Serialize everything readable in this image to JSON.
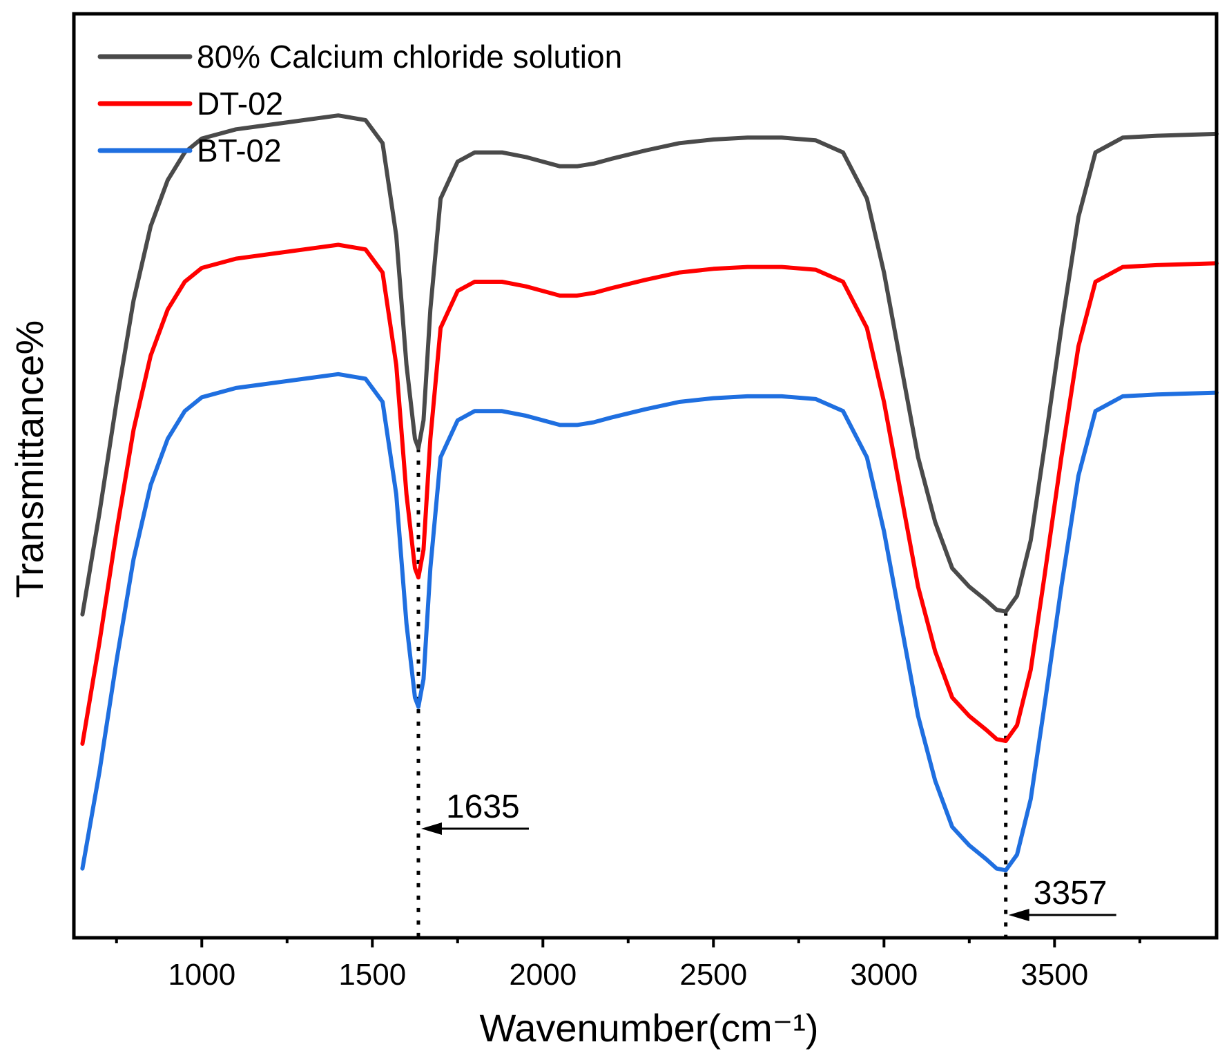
{
  "chart_data": {
    "type": "line",
    "title": "",
    "xlabel": "Wavenumber(cm⁻¹)",
    "ylabel": "Transmittance%",
    "xlim": [
      625,
      3975
    ],
    "ylim": [
      0,
      100
    ],
    "x_ticks": [
      1000,
      1500,
      2000,
      2500,
      3000,
      3500
    ],
    "x_tick_labels": [
      "1000",
      "1500",
      "2000",
      "2500",
      "3000",
      "3500"
    ],
    "y_ticks_shown": false,
    "grid": false,
    "legend_position": "top-left",
    "series": [
      {
        "name": "80% Calcium chloride solution",
        "color": "#4a4a4a",
        "points": [
          [
            650,
            35
          ],
          [
            700,
            46
          ],
          [
            750,
            58
          ],
          [
            800,
            69
          ],
          [
            850,
            77
          ],
          [
            900,
            82
          ],
          [
            950,
            85
          ],
          [
            1000,
            86.5
          ],
          [
            1100,
            87.5
          ],
          [
            1200,
            88
          ],
          [
            1300,
            88.5
          ],
          [
            1400,
            89
          ],
          [
            1480,
            88.5
          ],
          [
            1530,
            86
          ],
          [
            1570,
            76
          ],
          [
            1600,
            62
          ],
          [
            1625,
            54
          ],
          [
            1635,
            53
          ],
          [
            1650,
            56
          ],
          [
            1670,
            68
          ],
          [
            1700,
            80
          ],
          [
            1750,
            84
          ],
          [
            1800,
            85
          ],
          [
            1880,
            85
          ],
          [
            1950,
            84.5
          ],
          [
            2000,
            84
          ],
          [
            2050,
            83.5
          ],
          [
            2100,
            83.5
          ],
          [
            2150,
            83.8
          ],
          [
            2200,
            84.3
          ],
          [
            2300,
            85.2
          ],
          [
            2400,
            86
          ],
          [
            2500,
            86.4
          ],
          [
            2600,
            86.6
          ],
          [
            2700,
            86.6
          ],
          [
            2800,
            86.3
          ],
          [
            2880,
            85
          ],
          [
            2950,
            80
          ],
          [
            3000,
            72
          ],
          [
            3050,
            62
          ],
          [
            3100,
            52
          ],
          [
            3150,
            45
          ],
          [
            3200,
            40
          ],
          [
            3250,
            38
          ],
          [
            3300,
            36.5
          ],
          [
            3330,
            35.5
          ],
          [
            3357,
            35.3
          ],
          [
            3390,
            37
          ],
          [
            3430,
            43
          ],
          [
            3470,
            53
          ],
          [
            3520,
            66
          ],
          [
            3570,
            78
          ],
          [
            3620,
            85
          ],
          [
            3700,
            86.6
          ],
          [
            3800,
            86.8
          ],
          [
            3975,
            87
          ]
        ]
      },
      {
        "name": "DT-02",
        "color": "#ff0000",
        "points": [
          [
            650,
            21
          ],
          [
            700,
            32
          ],
          [
            750,
            44
          ],
          [
            800,
            55
          ],
          [
            850,
            63
          ],
          [
            900,
            68
          ],
          [
            950,
            71
          ],
          [
            1000,
            72.5
          ],
          [
            1100,
            73.5
          ],
          [
            1200,
            74
          ],
          [
            1300,
            74.5
          ],
          [
            1400,
            75
          ],
          [
            1480,
            74.5
          ],
          [
            1530,
            72
          ],
          [
            1570,
            62
          ],
          [
            1600,
            48
          ],
          [
            1625,
            40
          ],
          [
            1635,
            39
          ],
          [
            1650,
            42
          ],
          [
            1670,
            54
          ],
          [
            1700,
            66
          ],
          [
            1750,
            70
          ],
          [
            1800,
            71
          ],
          [
            1880,
            71
          ],
          [
            1950,
            70.5
          ],
          [
            2000,
            70
          ],
          [
            2050,
            69.5
          ],
          [
            2100,
            69.5
          ],
          [
            2150,
            69.8
          ],
          [
            2200,
            70.3
          ],
          [
            2300,
            71.2
          ],
          [
            2400,
            72
          ],
          [
            2500,
            72.4
          ],
          [
            2600,
            72.6
          ],
          [
            2700,
            72.6
          ],
          [
            2800,
            72.3
          ],
          [
            2880,
            71
          ],
          [
            2950,
            66
          ],
          [
            3000,
            58
          ],
          [
            3050,
            48
          ],
          [
            3100,
            38
          ],
          [
            3150,
            31
          ],
          [
            3200,
            26
          ],
          [
            3250,
            24
          ],
          [
            3300,
            22.5
          ],
          [
            3330,
            21.5
          ],
          [
            3357,
            21.3
          ],
          [
            3390,
            23
          ],
          [
            3430,
            29
          ],
          [
            3470,
            39
          ],
          [
            3520,
            52
          ],
          [
            3570,
            64
          ],
          [
            3620,
            71
          ],
          [
            3700,
            72.6
          ],
          [
            3800,
            72.8
          ],
          [
            3975,
            73
          ]
        ]
      },
      {
        "name": "BT-02",
        "color": "#1f6fe0",
        "points": [
          [
            650,
            7.5
          ],
          [
            700,
            18
          ],
          [
            750,
            30
          ],
          [
            800,
            41
          ],
          [
            850,
            49
          ],
          [
            900,
            54
          ],
          [
            950,
            57
          ],
          [
            1000,
            58.5
          ],
          [
            1100,
            59.5
          ],
          [
            1200,
            60
          ],
          [
            1300,
            60.5
          ],
          [
            1400,
            61
          ],
          [
            1480,
            60.5
          ],
          [
            1530,
            58
          ],
          [
            1570,
            48
          ],
          [
            1600,
            34
          ],
          [
            1625,
            26
          ],
          [
            1635,
            25
          ],
          [
            1650,
            28
          ],
          [
            1670,
            40
          ],
          [
            1700,
            52
          ],
          [
            1750,
            56
          ],
          [
            1800,
            57
          ],
          [
            1880,
            57
          ],
          [
            1950,
            56.5
          ],
          [
            2000,
            56
          ],
          [
            2050,
            55.5
          ],
          [
            2100,
            55.5
          ],
          [
            2150,
            55.8
          ],
          [
            2200,
            56.3
          ],
          [
            2300,
            57.2
          ],
          [
            2400,
            58
          ],
          [
            2500,
            58.4
          ],
          [
            2600,
            58.6
          ],
          [
            2700,
            58.6
          ],
          [
            2800,
            58.3
          ],
          [
            2880,
            57
          ],
          [
            2950,
            52
          ],
          [
            3000,
            44
          ],
          [
            3050,
            34
          ],
          [
            3100,
            24
          ],
          [
            3150,
            17
          ],
          [
            3200,
            12
          ],
          [
            3250,
            10
          ],
          [
            3300,
            8.5
          ],
          [
            3330,
            7.5
          ],
          [
            3357,
            7.3
          ],
          [
            3390,
            9
          ],
          [
            3430,
            15
          ],
          [
            3470,
            25
          ],
          [
            3520,
            38
          ],
          [
            3570,
            50
          ],
          [
            3620,
            57
          ],
          [
            3700,
            58.6
          ],
          [
            3800,
            58.8
          ],
          [
            3975,
            59
          ]
        ]
      }
    ],
    "annotations": [
      {
        "label": "1635",
        "x": 1635
      },
      {
        "label": "3357",
        "x": 3357
      }
    ]
  }
}
